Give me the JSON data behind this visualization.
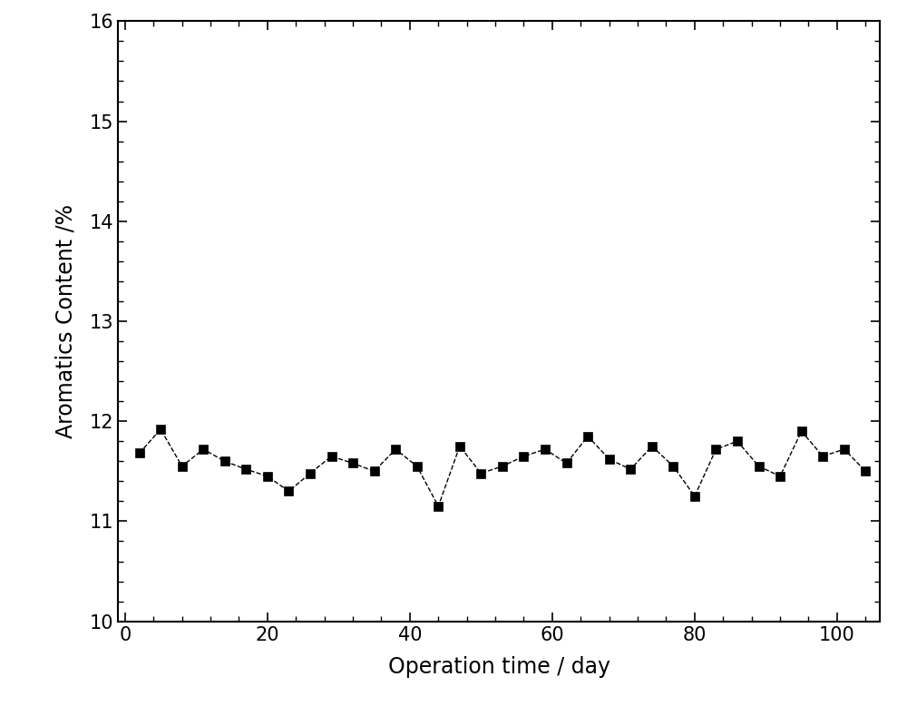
{
  "x": [
    2,
    5,
    8,
    11,
    14,
    17,
    20,
    23,
    26,
    29,
    32,
    35,
    38,
    41,
    44,
    47,
    50,
    53,
    56,
    59,
    62,
    65,
    68,
    71,
    74,
    77,
    80,
    83,
    86,
    89,
    92,
    95,
    98,
    101,
    104
  ],
  "y": [
    11.68,
    11.92,
    11.55,
    11.72,
    11.6,
    11.52,
    11.45,
    11.3,
    11.48,
    11.65,
    11.58,
    11.5,
    11.72,
    11.55,
    11.15,
    11.75,
    11.48,
    11.55,
    11.65,
    11.72,
    11.58,
    11.85,
    11.62,
    11.52,
    11.75,
    11.55,
    11.25,
    11.72,
    11.8,
    11.55,
    11.45,
    11.9,
    11.65,
    11.72,
    11.5
  ],
  "xlim": [
    -1,
    106
  ],
  "ylim": [
    10,
    16
  ],
  "xlabel": "Operation time / day",
  "ylabel": "Aromatics Content /%",
  "xticks": [
    0,
    20,
    40,
    60,
    80,
    100
  ],
  "yticks": [
    10,
    11,
    12,
    13,
    14,
    15,
    16
  ],
  "line_color": "#000000",
  "marker": "s",
  "marker_size": 7,
  "marker_color": "#000000",
  "line_style": "--",
  "line_width": 1.0,
  "background_color": "#ffffff",
  "xlabel_fontsize": 17,
  "ylabel_fontsize": 17,
  "tick_fontsize": 15,
  "fig_width": 10.0,
  "fig_height": 7.78
}
